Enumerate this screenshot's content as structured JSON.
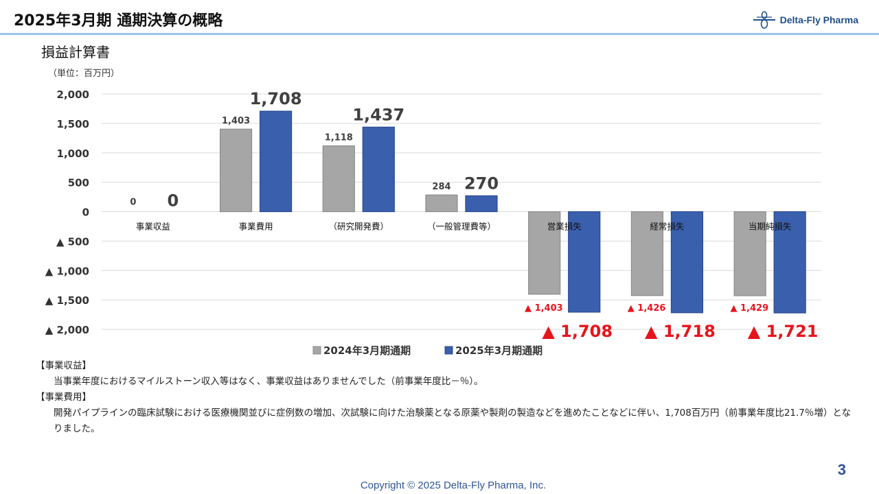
{
  "slide": {
    "title": "2025年3月期 通期決算の概略",
    "section_title": "損益計算書",
    "unit": "（単位：百万円）",
    "page_number": "3",
    "copyright": "Copyright © 2025 Delta-Fly Pharma, Inc."
  },
  "logo": {
    "text": "Delta-Fly Pharma",
    "icon": "delta-fly-logo-icon"
  },
  "colors": {
    "prev": "#a6a6a6",
    "curr": "#3a5fad",
    "negative_label": "#e8141b",
    "accent": "#2f5597"
  },
  "chart_data": {
    "type": "bar",
    "categories": [
      "事業収益",
      "事業費用",
      "（研究開発費）",
      "（一般管理費等）",
      "営業損失",
      "経常損失",
      "当期純損失"
    ],
    "series": [
      {
        "name": "2024年3月期通期",
        "values": [
          0,
          1403,
          1118,
          284,
          -1403,
          -1426,
          -1429
        ]
      },
      {
        "name": "2025年3月期通期",
        "values": [
          0,
          1708,
          1437,
          270,
          -1708,
          -1718,
          -1721
        ]
      }
    ],
    "data_labels": [
      [
        "0",
        "1,403",
        "1,118",
        "284",
        "▲ 1,403",
        "▲ 1,426",
        "▲ 1,429"
      ],
      [
        "0",
        "1,708",
        "1,437",
        "270",
        "▲ 1,708",
        "▲ 1,718",
        "▲ 1,721"
      ]
    ],
    "yticks": [
      2000,
      1500,
      1000,
      500,
      0,
      -500,
      -1000,
      -1500,
      -2000
    ],
    "ytick_labels": [
      "2,000",
      "1,500",
      "1,000",
      "500",
      "0",
      "▲ 500",
      "▲ 1,000",
      "▲ 1,500",
      "▲ 2,000"
    ],
    "ylim": [
      -2000,
      2000
    ],
    "grid": true,
    "legend_position": "bottom"
  },
  "notes": [
    {
      "heading": "【事業収益】",
      "text": "当事業年度におけるマイルストーン収入等はなく、事業収益はありませんでした（前事業年度比－％）。"
    },
    {
      "heading": "【事業費用】",
      "text": "開発パイプラインの臨床試験における医療機関並びに症例数の増加、次試験に向けた治験薬となる原薬や製剤の製造などを進めたことなどに伴い、1,708百万円（前事業年度比21.7％増）となりました。"
    }
  ]
}
